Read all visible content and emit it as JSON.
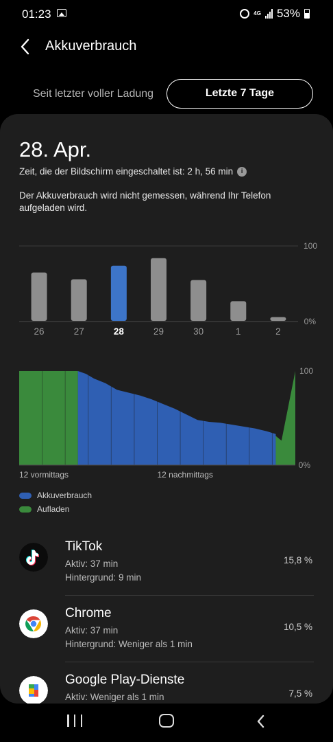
{
  "status_bar": {
    "time": "01:23",
    "network": "4G",
    "battery": "53%"
  },
  "header": {
    "title": "Akkuverbrauch"
  },
  "segments": {
    "left": "Seit letzter voller Ladung",
    "right": "Letzte 7 Tage"
  },
  "day": {
    "date": "28. Apr.",
    "screen_time": "Zeit, die der Bildschirm eingeschaltet ist: 2 h, 56 min",
    "note": "Der Akkuverbrauch wird nicht gemessen, während Ihr Telefon aufgeladen wird."
  },
  "chart_data": [
    {
      "type": "bar",
      "categories": [
        "26",
        "27",
        "28",
        "29",
        "30",
        "1",
        "2"
      ],
      "values": [
        64,
        55,
        73,
        83,
        54,
        26,
        5
      ],
      "selected": "28",
      "ylim": [
        0,
        100
      ],
      "y_tick_labels": [
        "100",
        "0%"
      ],
      "colors": {
        "default": "#8e8e8e",
        "selected": "#3d75c9"
      }
    },
    {
      "type": "area",
      "x_tick_labels": [
        "12 vormittags",
        "12 nachmittags"
      ],
      "y_tick_labels": [
        "100",
        "0%"
      ],
      "ylim": [
        0,
        100
      ],
      "xlim": [
        0,
        24
      ],
      "series": [
        {
          "name": "Akkuverbrauch",
          "color": "#2f5fb3",
          "x": [
            5.1,
            5.8,
            6.5,
            7.5,
            8.5,
            9.5,
            10.5,
            11.5,
            12.5,
            13.5,
            14.5,
            15.5,
            16.5,
            17.5,
            18.5,
            19.5,
            20.5,
            21.5,
            22.3
          ],
          "y": [
            100,
            97,
            92,
            87,
            80,
            77,
            74,
            70,
            65,
            60,
            54,
            48,
            46,
            45,
            43,
            41,
            39,
            36,
            33
          ]
        },
        {
          "name": "Aufladen",
          "color": "#3a8a3c",
          "segments": [
            {
              "x": [
                0,
                5.1
              ],
              "y": [
                100,
                100
              ]
            },
            {
              "x": [
                22.3,
                22.8,
                24
              ],
              "y": [
                31,
                26,
                100
              ]
            }
          ]
        }
      ]
    }
  ],
  "legend": [
    {
      "label": "Akkuverbrauch",
      "color": "#2f5fb3"
    },
    {
      "label": "Aufladen",
      "color": "#3a8a3c"
    }
  ],
  "apps": [
    {
      "name": "TikTok",
      "active": "Aktiv: 37 min",
      "background": "Hintergrund: 9 min",
      "percent": "15,8 %",
      "icon": "tiktok-icon"
    },
    {
      "name": "Chrome",
      "active": "Aktiv: 37 min",
      "background": "Hintergrund: Weniger als 1 min",
      "percent": "10,5 %",
      "icon": "chrome-icon"
    },
    {
      "name": "Google Play-Dienste",
      "active": "Aktiv: Weniger als 1 min",
      "background": "",
      "percent": "7,5 %",
      "icon": "google-play-services-icon"
    }
  ]
}
